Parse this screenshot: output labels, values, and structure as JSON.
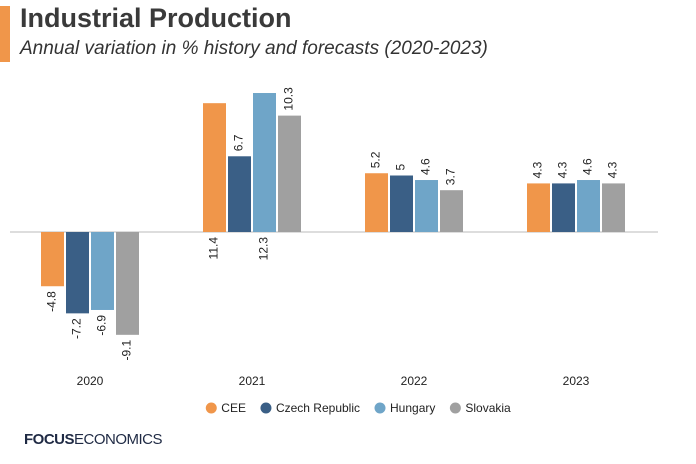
{
  "chart_data": {
    "type": "bar",
    "title": "Industrial Production",
    "subtitle": "Annual variation in % history and forecasts (2020-2023)",
    "categories": [
      "2020",
      "2021",
      "2022",
      "2023"
    ],
    "series": [
      {
        "name": "CEE",
        "color": "#f0964a",
        "values": [
          -4.8,
          11.4,
          5.2,
          4.3
        ]
      },
      {
        "name": "Czech Republic",
        "color": "#3a5f86",
        "values": [
          -7.2,
          6.7,
          5,
          4.3
        ]
      },
      {
        "name": "Hungary",
        "color": "#6fa5c8",
        "values": [
          -6.9,
          12.3,
          4.6,
          4.6
        ]
      },
      {
        "name": "Slovakia",
        "color": "#a0a0a0",
        "values": [
          -9.1,
          10.3,
          3.7,
          4.3
        ]
      }
    ],
    "logo": {
      "bold": "FOCUS",
      "light": "ECONOMICS"
    }
  }
}
